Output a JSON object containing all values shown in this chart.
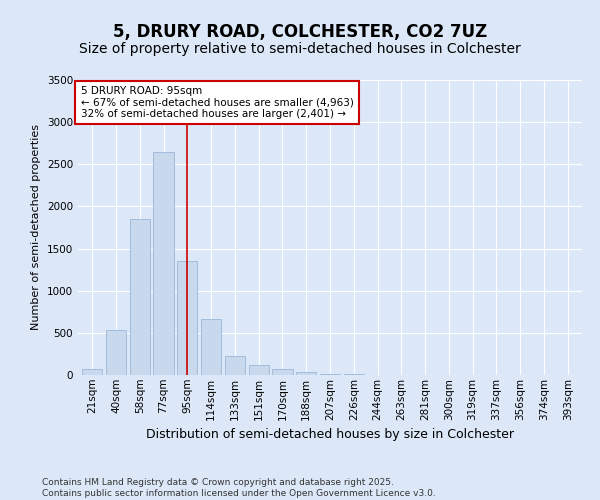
{
  "title": "5, DRURY ROAD, COLCHESTER, CO2 7UZ",
  "subtitle": "Size of property relative to semi-detached houses in Colchester",
  "xlabel": "Distribution of semi-detached houses by size in Colchester",
  "ylabel": "Number of semi-detached properties",
  "categories": [
    "21sqm",
    "40sqm",
    "58sqm",
    "77sqm",
    "95sqm",
    "114sqm",
    "133sqm",
    "151sqm",
    "170sqm",
    "188sqm",
    "207sqm",
    "226sqm",
    "244sqm",
    "263sqm",
    "281sqm",
    "300sqm",
    "319sqm",
    "337sqm",
    "356sqm",
    "374sqm",
    "393sqm"
  ],
  "values": [
    75,
    530,
    1850,
    2650,
    1350,
    660,
    220,
    120,
    75,
    35,
    15,
    8,
    3,
    2,
    1,
    1,
    0,
    0,
    0,
    0,
    0
  ],
  "bar_color": "#c8d9ee",
  "bar_edge_color": "#9ab8d8",
  "highlight_index": 4,
  "highlight_color": "#cc0000",
  "annotation_text": "5 DRURY ROAD: 95sqm\n← 67% of semi-detached houses are smaller (4,963)\n32% of semi-detached houses are larger (2,401) →",
  "annotation_box_color": "#ffffff",
  "annotation_box_edge": "#cc0000",
  "ylim": [
    0,
    3500
  ],
  "yticks": [
    0,
    500,
    1000,
    1500,
    2000,
    2500,
    3000,
    3500
  ],
  "footer_line1": "Contains HM Land Registry data © Crown copyright and database right 2025.",
  "footer_line2": "Contains public sector information licensed under the Open Government Licence v3.0.",
  "bg_color": "#dce8f8",
  "plot_bg_color": "#dce8f8",
  "title_fontsize": 12,
  "subtitle_fontsize": 10,
  "tick_fontsize": 7.5,
  "ylabel_fontsize": 8,
  "xlabel_fontsize": 9,
  "footer_fontsize": 6.5
}
